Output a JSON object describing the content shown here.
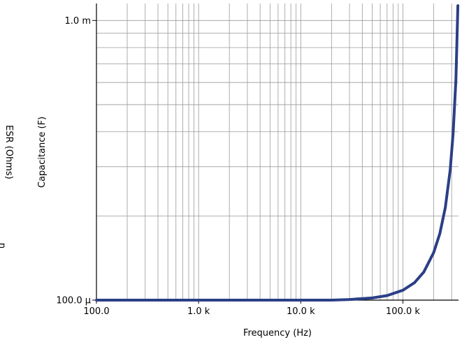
{
  "chart_data": {
    "type": "line",
    "x_scale": "log",
    "y_scale": "log",
    "xlabel": "Frequency (Hz)",
    "ylabel": "Capacitance (F)",
    "secondary_ylabel": "ESR (Ohms)",
    "left_edge_fragment": "n",
    "xlim": [
      100,
      350000
    ],
    "ylim": [
      0.0001,
      0.00115
    ],
    "x_ticks": [
      {
        "value": 100,
        "label": "100.0"
      },
      {
        "value": 1000,
        "label": "1.0 k"
      },
      {
        "value": 10000,
        "label": "10.0 k"
      },
      {
        "value": 100000,
        "label": "100.0 k"
      }
    ],
    "y_ticks": [
      {
        "value": 0.0001,
        "label": "100.0 µ"
      },
      {
        "value": 0.001,
        "label": "1.0 m"
      }
    ],
    "grid": true,
    "line_color": "#2b3f86",
    "series": [
      {
        "x": [
          100,
          1000,
          10000,
          20000,
          30000,
          50000,
          70000,
          100000,
          130000,
          160000,
          200000,
          230000,
          260000,
          290000,
          310000,
          330000,
          345000
        ],
        "y": [
          0.0001,
          0.0001,
          0.0001,
          0.0001,
          0.0001005,
          0.0001018,
          0.0001038,
          0.0001085,
          0.0001155,
          0.000126,
          0.000148,
          0.000173,
          0.000214,
          0.000292,
          0.000395,
          0.000615,
          0.00113
        ]
      }
    ]
  }
}
